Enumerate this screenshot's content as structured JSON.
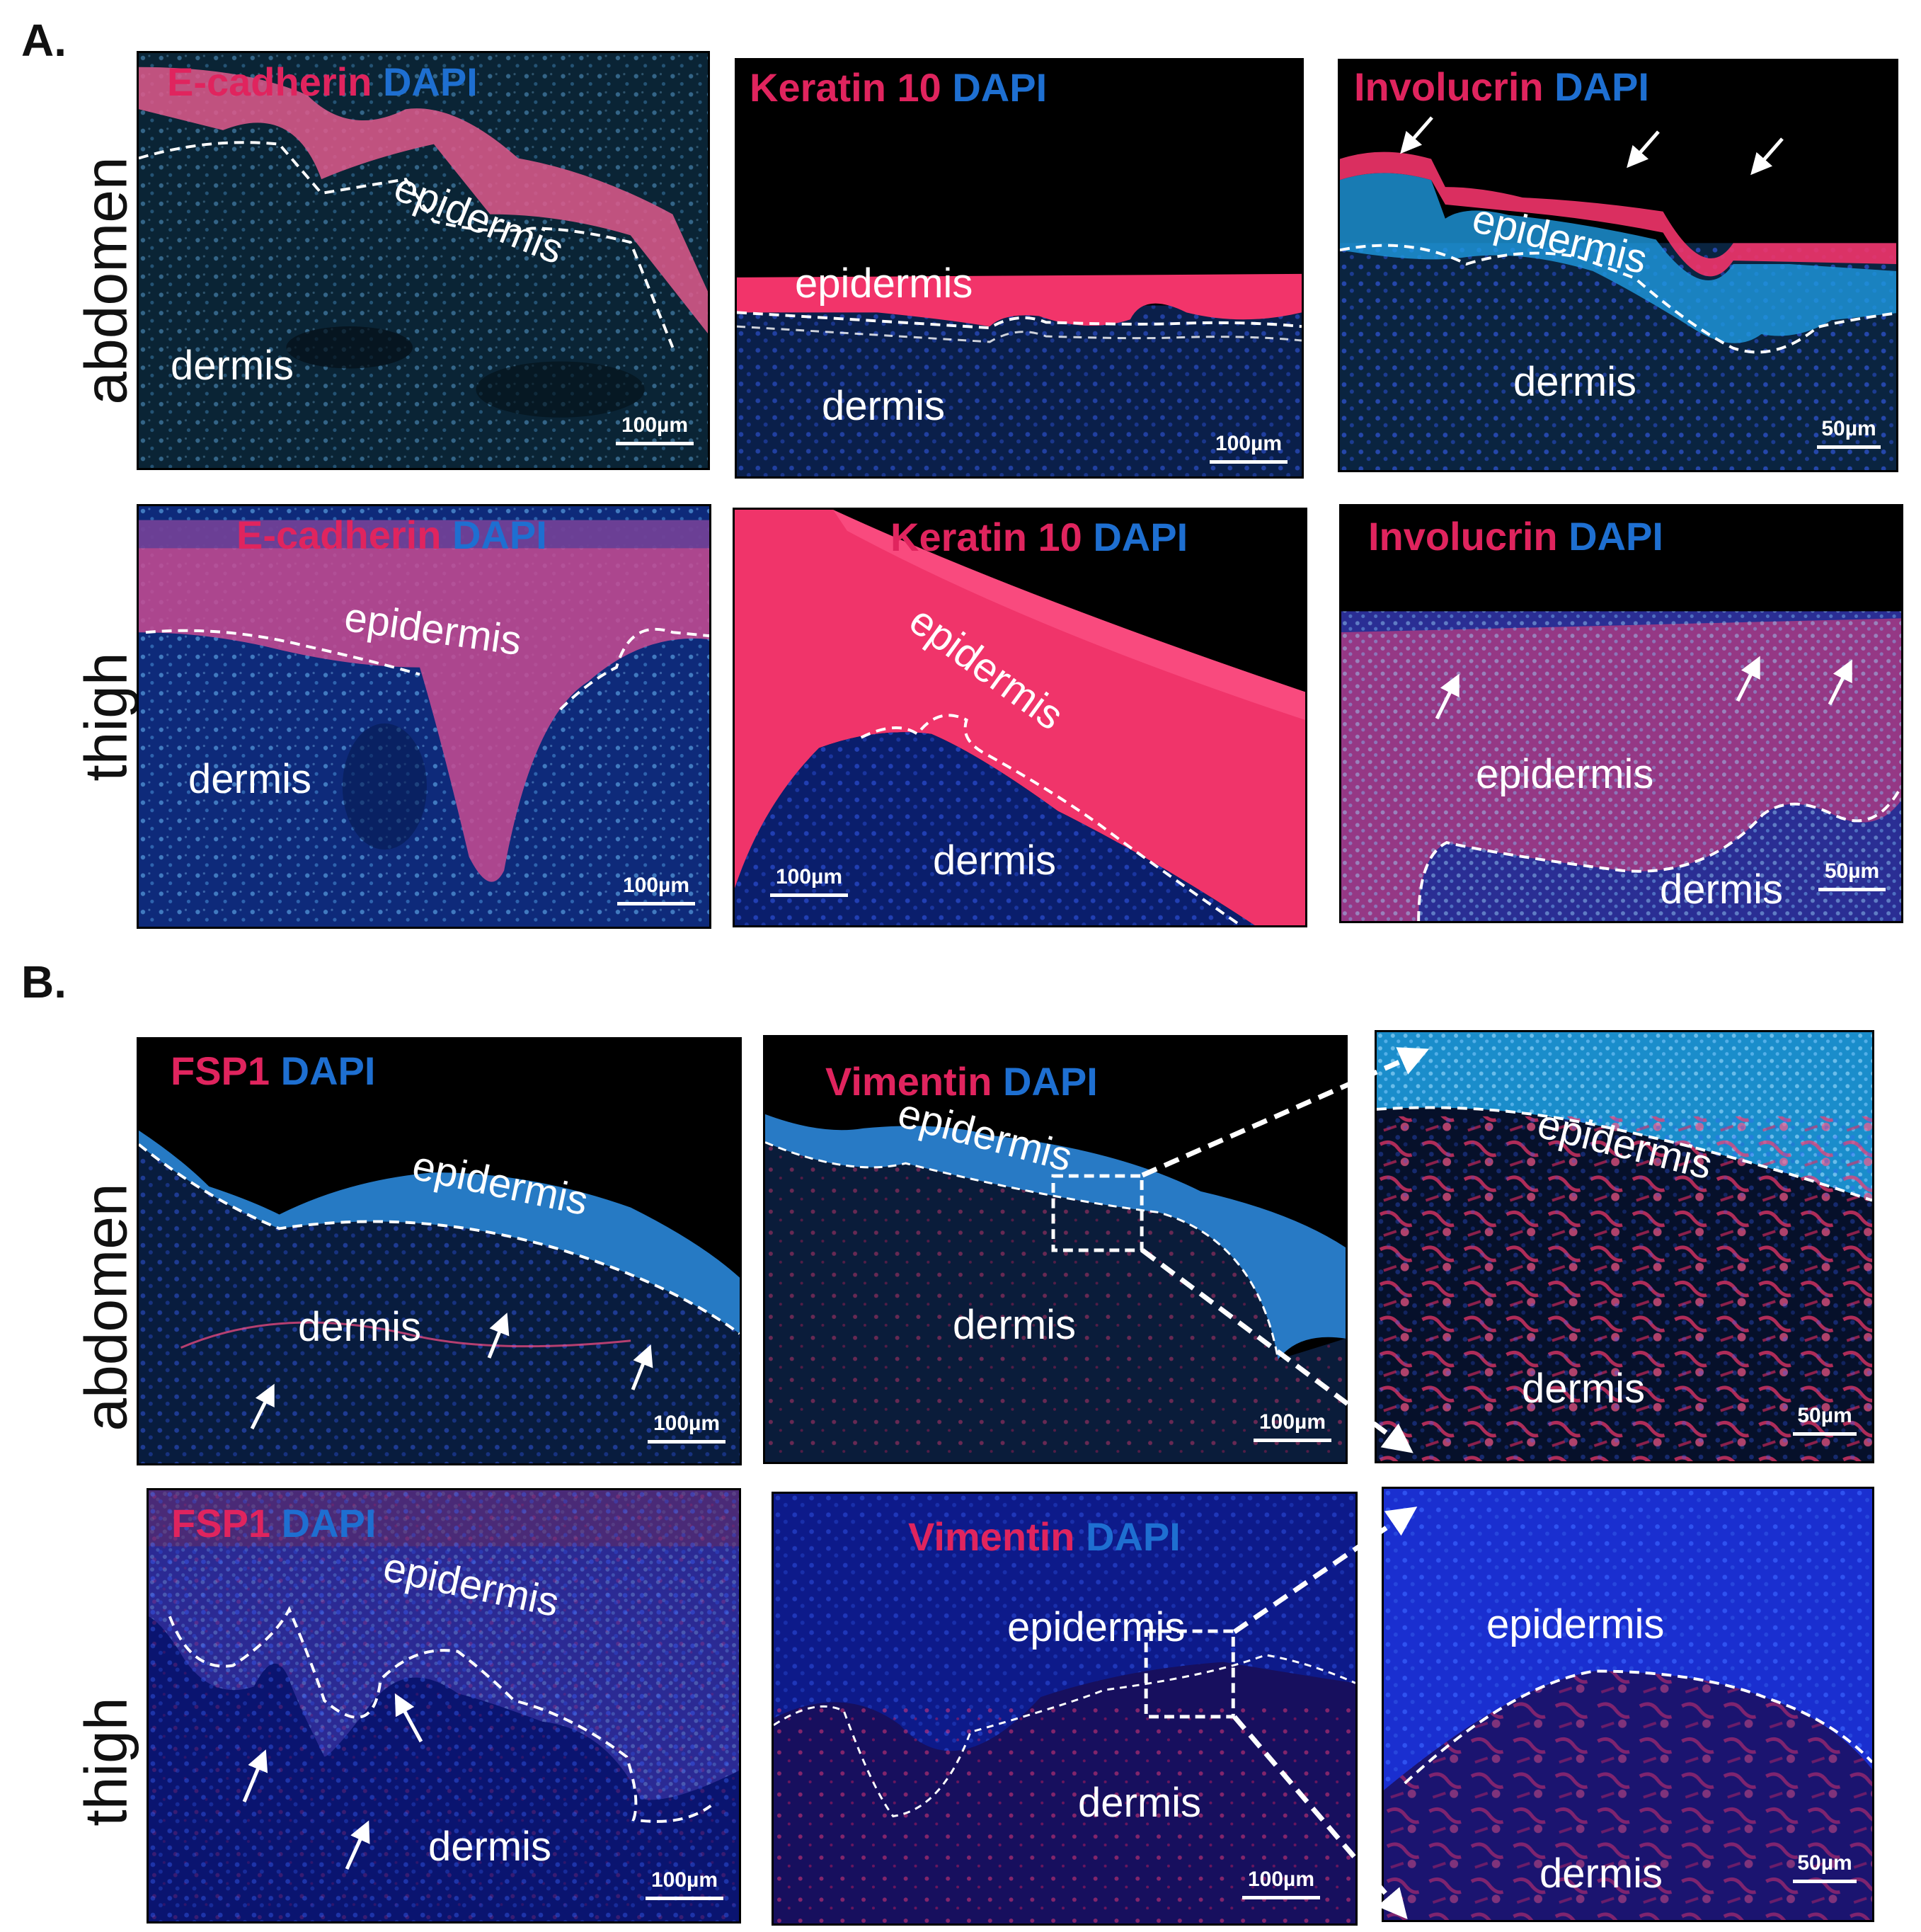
{
  "figure": {
    "section_a": "A.",
    "section_b": "B.",
    "row_labels": {
      "abdomen": "abdomen",
      "thigh": "thigh"
    },
    "colors": {
      "marker": "#e0245e",
      "dapi": "#1e6fd1"
    },
    "labels": {
      "epidermis": "epidermis",
      "dermis": "dermis"
    },
    "scale": {
      "s100": "100µm",
      "s50": "50µm"
    },
    "panels": {
      "a1": {
        "marker": "E-cadherin",
        "dapi": "DAPI"
      },
      "a2": {
        "marker": "Keratin 10",
        "dapi": "DAPI"
      },
      "a3": {
        "marker": "Involucrin",
        "dapi": "DAPI"
      },
      "a4": {
        "marker": "E-cadherin",
        "dapi": "DAPI"
      },
      "a5": {
        "marker": "Keratin 10",
        "dapi": "DAPI"
      },
      "a6": {
        "marker": "Involucrin",
        "dapi": "DAPI"
      },
      "b1": {
        "marker": "FSP1",
        "dapi": "DAPI"
      },
      "b2": {
        "marker": "Vimentin",
        "dapi": "DAPI"
      },
      "b4": {
        "marker": "FSP1",
        "dapi": "DAPI"
      },
      "b5": {
        "marker": "Vimentin",
        "dapi": "DAPI"
      }
    }
  }
}
